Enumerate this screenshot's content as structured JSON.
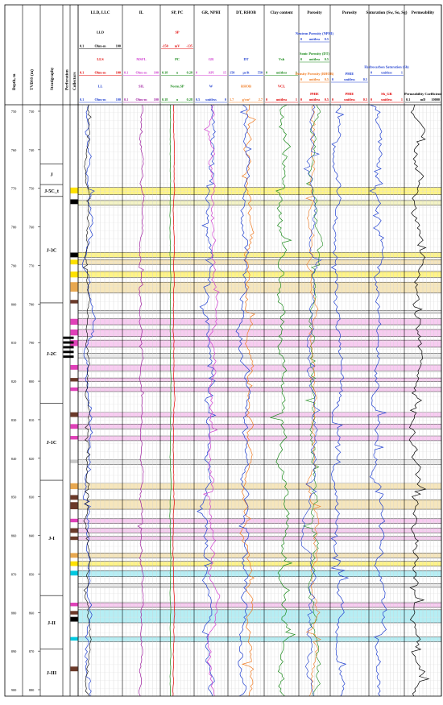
{
  "headers": {
    "depth_md": "Depth, m",
    "depth_tvdss": "TVDSS (m)",
    "stratigraphy": "Stratigraphy",
    "perforation": "Perforation",
    "collectors": "Collectors"
  },
  "tracks": [
    {
      "title": "LLD, LLC",
      "curves": [
        {
          "name": "LLD",
          "scale": [
            "",
            "",
            ""
          ],
          "color": "#000000"
        },
        {
          "name": "",
          "scale": [
            "0.1",
            "Ohm·m",
            "100"
          ],
          "color": "#000000"
        },
        {
          "name": "LLS",
          "scale": [
            "",
            "",
            ""
          ],
          "color": "#e00000"
        },
        {
          "name": "",
          "scale": [
            "0.1",
            "Ohm·m",
            "100"
          ],
          "color": "#e00000"
        },
        {
          "name": "LL",
          "scale": [
            "",
            "",
            ""
          ],
          "color": "#1f3fd0"
        },
        {
          "name": "",
          "scale": [
            "0.1",
            "Ohm·m",
            "100"
          ],
          "color": "#1f3fd0"
        }
      ]
    },
    {
      "title": "IL",
      "curves": [
        {
          "name": "",
          "scale": [
            "",
            "",
            ""
          ],
          "color": "#000000"
        },
        {
          "name": "",
          "scale": [
            "",
            "",
            ""
          ],
          "color": "#000000"
        },
        {
          "name": "MSFL",
          "scale": [
            "",
            "",
            ""
          ],
          "color": "#d040d0"
        },
        {
          "name": "",
          "scale": [
            "0.1",
            "Ohm·m",
            "100"
          ],
          "color": "#d040d0"
        },
        {
          "name": "SIL",
          "scale": [
            "",
            "",
            ""
          ],
          "color": "#a020a0"
        },
        {
          "name": "",
          "scale": [
            "0.1",
            "Ohm·m",
            "100"
          ],
          "color": "#a020a0"
        }
      ]
    },
    {
      "title": "SP, PC",
      "curves": [
        {
          "name": "SP",
          "scale": [
            "",
            "",
            ""
          ],
          "color": "#e00000"
        },
        {
          "name": "",
          "scale": [
            "-150",
            "mV",
            "-135"
          ],
          "color": "#e00000"
        },
        {
          "name": "PC",
          "scale": [
            "",
            "",
            ""
          ],
          "color": "#1a8a1a"
        },
        {
          "name": "",
          "scale": [
            "0.18",
            "u",
            "0.28"
          ],
          "color": "#1a8a1a"
        },
        {
          "name": "Norm.SP",
          "scale": [
            "",
            "",
            ""
          ],
          "color": "#1a8a1a"
        },
        {
          "name": "",
          "scale": [
            "0.18",
            "u",
            "0.28"
          ],
          "color": "#1a8a1a"
        }
      ]
    },
    {
      "title": "GR, NPHI",
      "curves": [
        {
          "name": "",
          "scale": [
            "",
            "",
            ""
          ],
          "color": "#000000"
        },
        {
          "name": "",
          "scale": [
            "",
            "",
            ""
          ],
          "color": "#000000"
        },
        {
          "name": "GR",
          "scale": [
            "",
            "",
            ""
          ],
          "color": "#d040d0"
        },
        {
          "name": "",
          "scale": [
            "0",
            "API",
            "15"
          ],
          "color": "#d040d0"
        },
        {
          "name": "W",
          "scale": [
            "",
            "",
            ""
          ],
          "color": "#1f3fd0"
        },
        {
          "name": "",
          "scale": [
            "0.5",
            "unitless",
            "0"
          ],
          "color": "#1f3fd0"
        }
      ]
    },
    {
      "title": "DT, RHOB",
      "curves": [
        {
          "name": "",
          "scale": [
            "",
            "",
            ""
          ],
          "color": "#000000"
        },
        {
          "name": "",
          "scale": [
            "",
            "",
            ""
          ],
          "color": "#000000"
        },
        {
          "name": "DT",
          "scale": [
            "",
            "",
            ""
          ],
          "color": "#1f3fd0"
        },
        {
          "name": "",
          "scale": [
            "150",
            "µs/ft",
            "550"
          ],
          "color": "#1f3fd0"
        },
        {
          "name": "RHOB",
          "scale": [
            "",
            "",
            ""
          ],
          "color": "#f07a20"
        },
        {
          "name": "",
          "scale": [
            "1.7",
            "g/cm³",
            "2.7"
          ],
          "color": "#f07a20"
        }
      ]
    },
    {
      "title": "Clay content",
      "curves": [
        {
          "name": "",
          "scale": [
            "",
            "",
            ""
          ],
          "color": "#000000"
        },
        {
          "name": "",
          "scale": [
            "",
            "",
            ""
          ],
          "color": "#000000"
        },
        {
          "name": "Vsh",
          "scale": [
            "",
            "",
            ""
          ],
          "color": "#1a8a1a"
        },
        {
          "name": "",
          "scale": [
            "0",
            "unitless",
            "1"
          ],
          "color": "#1a8a1a"
        },
        {
          "name": "VCL",
          "scale": [
            "",
            "",
            ""
          ],
          "color": "#e00000"
        },
        {
          "name": "",
          "scale": [
            "0",
            "unitless",
            "1"
          ],
          "color": "#e00000"
        }
      ]
    },
    {
      "title": "Porosity",
      "curves": [
        {
          "name": "Neutron Porosity (NPHI)",
          "scale": [
            "0",
            "unitless",
            "0.5"
          ],
          "color": "#1f3fd0"
        },
        {
          "name": "Sonic Porosity (DT)",
          "scale": [
            "0",
            "unitless",
            "0.5"
          ],
          "color": "#1a8a1a"
        },
        {
          "name": "Density Porosity (RHOB)",
          "scale": [
            "0",
            "unitless",
            "0.5"
          ],
          "color": "#f07a20"
        },
        {
          "name": "PHIE",
          "scale": [
            "0",
            "unitless",
            "0.5"
          ],
          "color": "#e00000"
        }
      ]
    },
    {
      "title": "Porosity",
      "curves": [
        {
          "name": "",
          "scale": [
            "",
            "",
            ""
          ],
          "color": "#000000"
        },
        {
          "name": "",
          "scale": [
            "",
            "",
            ""
          ],
          "color": "#000000"
        },
        {
          "name": "PHIE",
          "scale": [
            "0",
            "unitless",
            "0.5"
          ],
          "color": "#1f3fd0"
        },
        {
          "name": "PHIE",
          "scale": [
            "0",
            "unitless",
            "0.5"
          ],
          "color": "#e00000"
        }
      ]
    },
    {
      "title": "Saturation (Sw, So, Sg)",
      "curves": [
        {
          "name": "",
          "scale": [
            "",
            "",
            ""
          ],
          "color": "#000000"
        },
        {
          "name": "Hydrocarbon Saturation (Sh)",
          "scale": [
            "0",
            "unitless",
            "1"
          ],
          "color": "#1f3fd0"
        },
        {
          "name": "Sh_GR",
          "scale": [
            "0",
            "unitless",
            "1"
          ],
          "color": "#e00000"
        }
      ]
    },
    {
      "title": "Permeability",
      "curves": [
        {
          "name": "",
          "scale": [
            "",
            "",
            ""
          ],
          "color": "#000000"
        },
        {
          "name": "",
          "scale": [
            "",
            "",
            ""
          ],
          "color": "#000000"
        },
        {
          "name": "",
          "scale": [
            "",
            "",
            ""
          ],
          "color": "#000000"
        },
        {
          "name": "Permeability Coefficient",
          "scale": [
            "0.1",
            "mD",
            "10000"
          ],
          "color": "#000000"
        }
      ]
    }
  ],
  "depth_ticks": {
    "md": [
      "750",
      "760",
      "770",
      "780",
      "790",
      "800",
      "810",
      "820",
      "830",
      "840",
      "850",
      "860",
      "870",
      "880",
      "890",
      "900"
    ],
    "tvdss": [
      "730",
      "740",
      "750",
      "760",
      "770",
      "780",
      "790",
      "800",
      "810",
      "820",
      "830",
      "840",
      "850",
      "860",
      "870",
      "880"
    ]
  },
  "stratigraphy": [
    {
      "label": "J",
      "top": 0.1,
      "bottom": 0.135
    },
    {
      "label": "J-5C_t",
      "top": 0.135,
      "bottom": 0.155
    },
    {
      "label": "J-3C",
      "top": 0.155,
      "bottom": 0.335
    },
    {
      "label": "J-2C",
      "top": 0.335,
      "bottom": 0.505
    },
    {
      "label": "J-1C",
      "top": 0.505,
      "bottom": 0.635
    },
    {
      "label": "J-I",
      "top": 0.635,
      "bottom": 0.83
    },
    {
      "label": "J-II",
      "top": 0.83,
      "bottom": 0.92
    },
    {
      "label": "J-III",
      "top": 0.92,
      "bottom": 1.0
    }
  ],
  "zones": [
    {
      "top": 0.14,
      "bottom": 0.152,
      "color": "#fff37a"
    },
    {
      "top": 0.162,
      "bottom": 0.17,
      "color": "#f3f3c0"
    },
    {
      "top": 0.25,
      "bottom": 0.258,
      "color": "#fff37a"
    },
    {
      "top": 0.262,
      "bottom": 0.27,
      "color": "#f5e3b5"
    },
    {
      "top": 0.282,
      "bottom": 0.292,
      "color": "#fff37a"
    },
    {
      "top": 0.3,
      "bottom": 0.318,
      "color": "#f5e3b5"
    },
    {
      "top": 0.348,
      "bottom": 0.352,
      "color": "#e9e9e9"
    },
    {
      "top": 0.362,
      "bottom": 0.372,
      "color": "#f7c6ef"
    },
    {
      "top": 0.38,
      "bottom": 0.392,
      "color": "#f7c6ef"
    },
    {
      "top": 0.398,
      "bottom": 0.41,
      "color": "#f7c6ef"
    },
    {
      "top": 0.42,
      "bottom": 0.428,
      "color": "#e9e9e9"
    },
    {
      "top": 0.44,
      "bottom": 0.45,
      "color": "#f7c6ef"
    },
    {
      "top": 0.462,
      "bottom": 0.468,
      "color": "#f7c6ef"
    },
    {
      "top": 0.478,
      "bottom": 0.485,
      "color": "#f7c6ef"
    },
    {
      "top": 0.52,
      "bottom": 0.528,
      "color": "#f7c6ef"
    },
    {
      "top": 0.54,
      "bottom": 0.548,
      "color": "#f7c6ef"
    },
    {
      "top": 0.56,
      "bottom": 0.568,
      "color": "#f7c6ef"
    },
    {
      "top": 0.6,
      "bottom": 0.608,
      "color": "#e9e9e9"
    },
    {
      "top": 0.64,
      "bottom": 0.65,
      "color": "#f5e3b5"
    },
    {
      "top": 0.668,
      "bottom": 0.684,
      "color": "#f5e3b5"
    },
    {
      "top": 0.7,
      "bottom": 0.708,
      "color": "#f7c6ef"
    },
    {
      "top": 0.716,
      "bottom": 0.724,
      "color": "#f7c6ef"
    },
    {
      "top": 0.73,
      "bottom": 0.736,
      "color": "#f7c6ef"
    },
    {
      "top": 0.758,
      "bottom": 0.766,
      "color": "#f5e3b5"
    },
    {
      "top": 0.772,
      "bottom": 0.78,
      "color": "#fff37a"
    },
    {
      "top": 0.788,
      "bottom": 0.798,
      "color": "#aeecf3"
    },
    {
      "top": 0.81,
      "bottom": 0.816,
      "color": "#e9e9e9"
    },
    {
      "top": 0.842,
      "bottom": 0.85,
      "color": "#f7c6ef"
    },
    {
      "top": 0.854,
      "bottom": 0.876,
      "color": "#aeecf3"
    },
    {
      "top": 0.9,
      "bottom": 0.908,
      "color": "#aeecf3"
    }
  ],
  "collectors": [
    {
      "top": 0.14,
      "bottom": 0.15,
      "color": "#ffe100"
    },
    {
      "top": 0.16,
      "bottom": 0.168,
      "color": "#000000"
    },
    {
      "top": 0.25,
      "bottom": 0.258,
      "color": "#000000"
    },
    {
      "top": 0.262,
      "bottom": 0.27,
      "color": "#ffe100"
    },
    {
      "top": 0.282,
      "bottom": 0.292,
      "color": "#ffe100"
    },
    {
      "top": 0.3,
      "bottom": 0.316,
      "color": "#e8a850"
    },
    {
      "top": 0.33,
      "bottom": 0.336,
      "color": "#6b3a2a"
    },
    {
      "top": 0.362,
      "bottom": 0.372,
      "color": "#e040b8"
    },
    {
      "top": 0.38,
      "bottom": 0.39,
      "color": "#e040b8"
    },
    {
      "top": 0.398,
      "bottom": 0.408,
      "color": "#e040b8"
    },
    {
      "top": 0.44,
      "bottom": 0.448,
      "color": "#e040b8"
    },
    {
      "top": 0.462,
      "bottom": 0.468,
      "color": "#6b3a2a"
    },
    {
      "top": 0.478,
      "bottom": 0.484,
      "color": "#e040b8"
    },
    {
      "top": 0.52,
      "bottom": 0.528,
      "color": "#6b3a2a"
    },
    {
      "top": 0.54,
      "bottom": 0.548,
      "color": "#e040b8"
    },
    {
      "top": 0.56,
      "bottom": 0.566,
      "color": "#e040b8"
    },
    {
      "top": 0.6,
      "bottom": 0.606,
      "color": "#c8c8c8"
    },
    {
      "top": 0.64,
      "bottom": 0.65,
      "color": "#e8a850"
    },
    {
      "top": 0.66,
      "bottom": 0.668,
      "color": "#6b3a2a"
    },
    {
      "top": 0.672,
      "bottom": 0.684,
      "color": "#6b3a2a"
    },
    {
      "top": 0.7,
      "bottom": 0.706,
      "color": "#e040b8"
    },
    {
      "top": 0.716,
      "bottom": 0.724,
      "color": "#6b3a2a"
    },
    {
      "top": 0.73,
      "bottom": 0.736,
      "color": "#6b3a2a"
    },
    {
      "top": 0.758,
      "bottom": 0.766,
      "color": "#e8a850"
    },
    {
      "top": 0.772,
      "bottom": 0.78,
      "color": "#ffe100"
    },
    {
      "top": 0.788,
      "bottom": 0.796,
      "color": "#00c8e0"
    },
    {
      "top": 0.842,
      "bottom": 0.848,
      "color": "#e040b8"
    },
    {
      "top": 0.856,
      "bottom": 0.862,
      "color": "#6b3a2a"
    },
    {
      "top": 0.866,
      "bottom": 0.874,
      "color": "#000000"
    },
    {
      "top": 0.9,
      "bottom": 0.906,
      "color": "#00c8e0"
    },
    {
      "top": 0.95,
      "bottom": 0.958,
      "color": "#6b3a2a"
    }
  ],
  "perforations": [
    {
      "top": 0.392,
      "bottom": 0.396
    },
    {
      "top": 0.4,
      "bottom": 0.404
    },
    {
      "top": 0.408,
      "bottom": 0.412
    },
    {
      "top": 0.416,
      "bottom": 0.42
    },
    {
      "top": 0.424,
      "bottom": 0.428
    }
  ]
}
